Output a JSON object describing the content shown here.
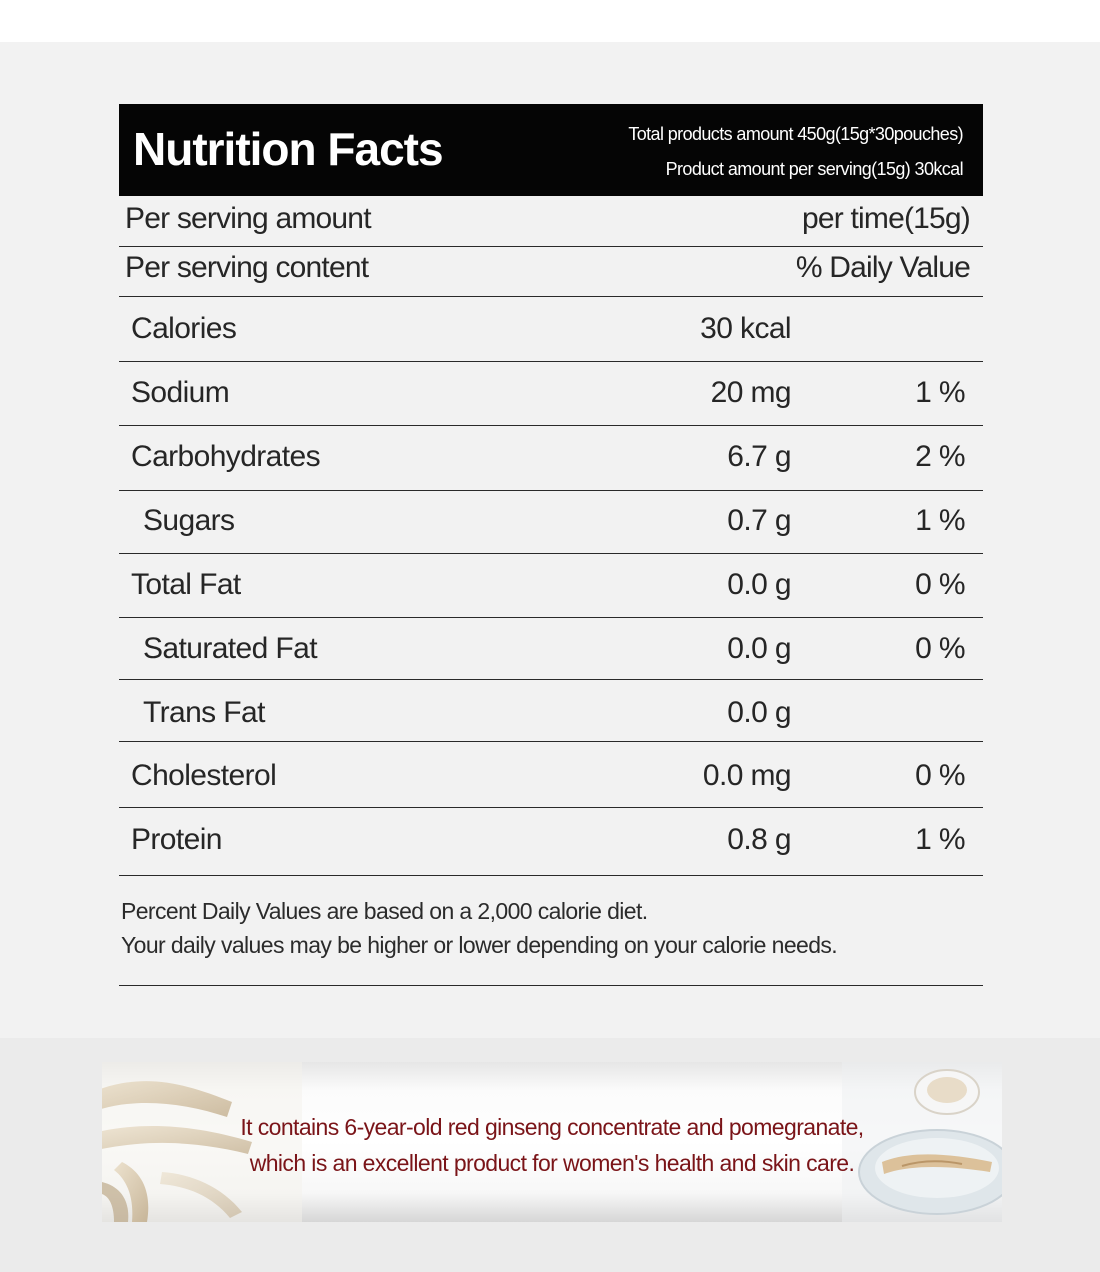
{
  "nutrition": {
    "title": "Nutrition Facts",
    "total_amount": "Total products amount 450g(15g*30pouches)",
    "per_serving_summary": "Product amount per serving(15g) 30kcal",
    "serving_amount_label": "Per serving amount",
    "serving_amount_value": "per time(15g)",
    "serving_content_label": "Per serving content",
    "serving_content_value": "% Daily Value",
    "rows": [
      {
        "name": "Calories",
        "amount": "30 kcal",
        "dv": ""
      },
      {
        "name": "Sodium",
        "amount": "20 mg",
        "dv": "1 %"
      },
      {
        "name": "Carbohydrates",
        "amount": "6.7 g",
        "dv": "2 %"
      },
      {
        "name": "Sugars",
        "amount": "0.7 g",
        "dv": "1 %"
      },
      {
        "name": "Total Fat",
        "amount": "0.0 g",
        "dv": "0 %"
      },
      {
        "name": "Saturated Fat",
        "amount": "0.0 g",
        "dv": "0 %"
      },
      {
        "name": "Trans Fat",
        "amount": "0.0 g",
        "dv": ""
      },
      {
        "name": "Cholesterol",
        "amount": "0.0 mg",
        "dv": "0 %"
      },
      {
        "name": "Protein",
        "amount": "0.8 g",
        "dv": "1 %"
      }
    ],
    "footnote_line1": "Percent Daily Values are based on a 2,000 calorie diet.",
    "footnote_line2": "Your daily values may be higher or lower depending on your calorie needs."
  },
  "banner": {
    "line1": "It contains 6-year-old red ginseng concentrate and pomegranate,",
    "line2": "which is an excellent product for women's health and skin care.",
    "text_color": "#7a1418"
  }
}
